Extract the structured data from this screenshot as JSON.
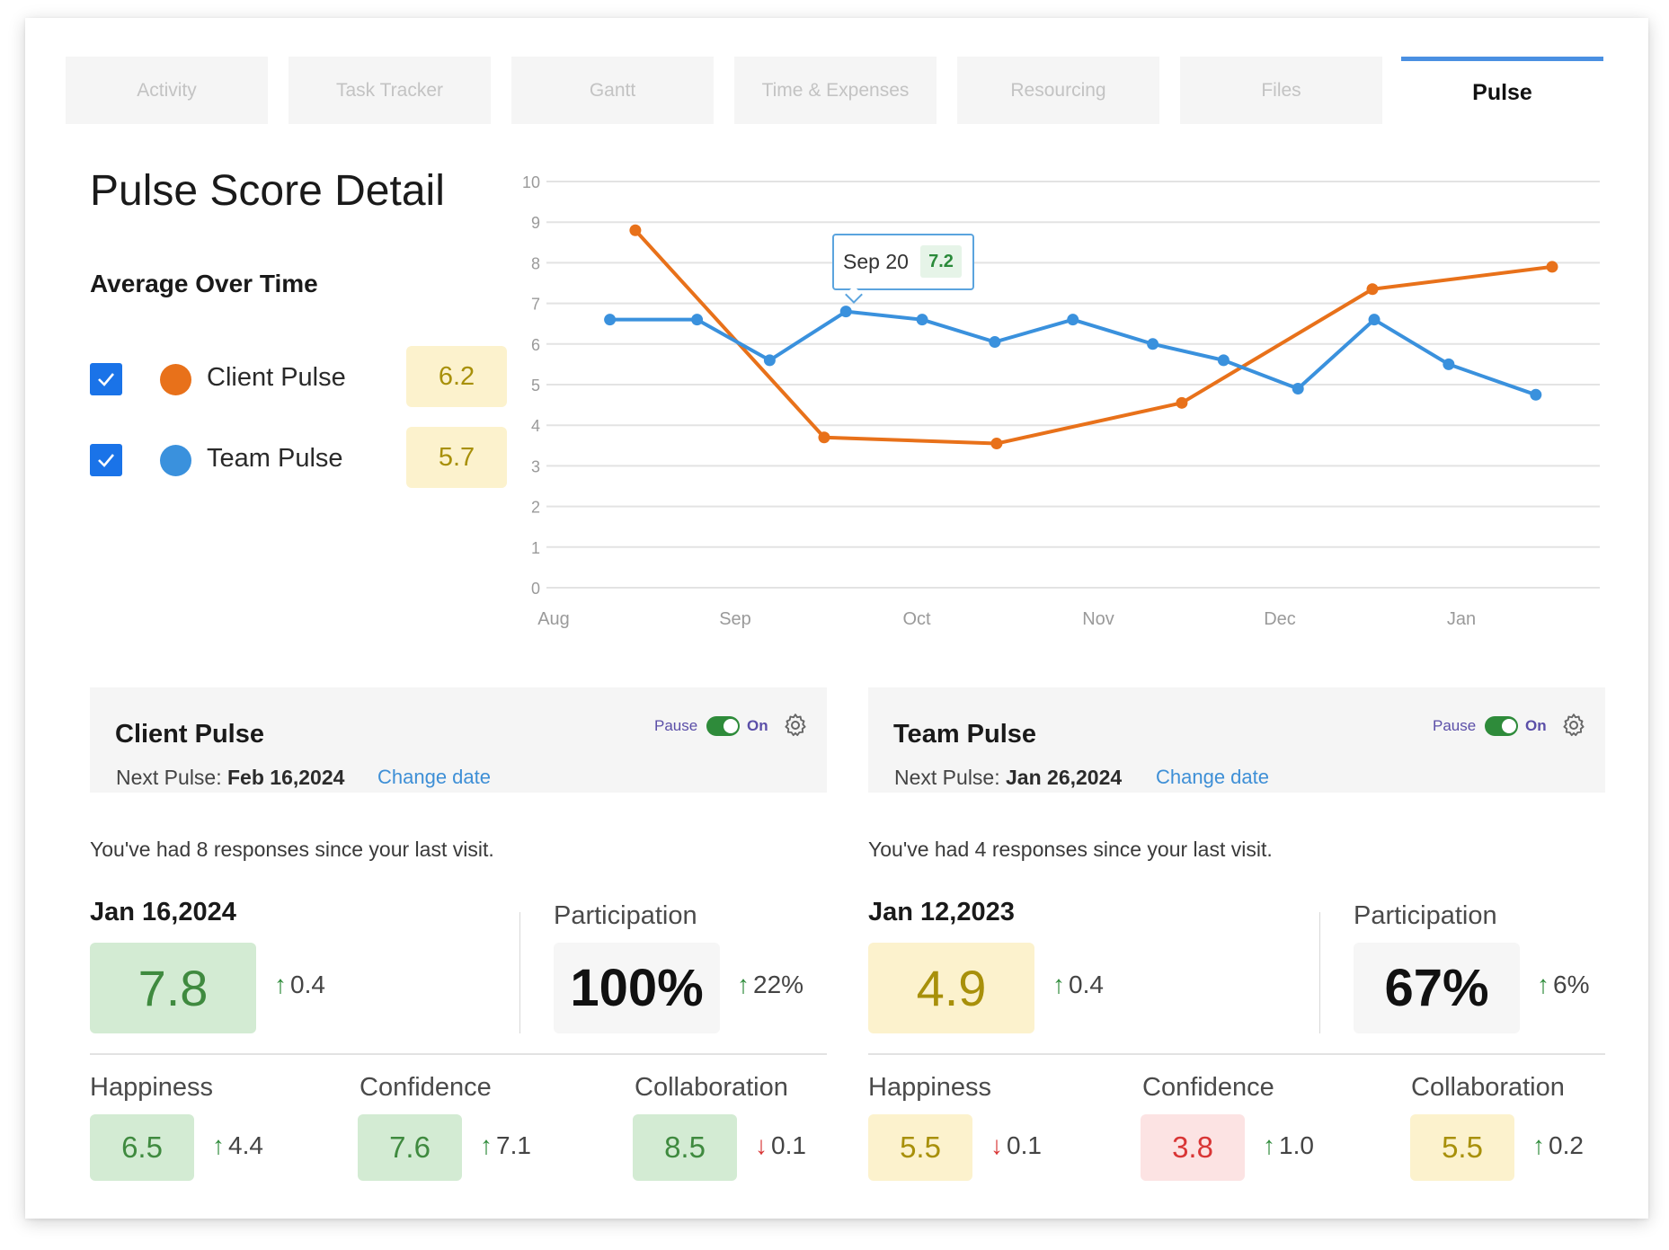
{
  "tabs": [
    {
      "label": "Activity"
    },
    {
      "label": "Task Tracker"
    },
    {
      "label": "Gantt"
    },
    {
      "label": "Time & Expenses"
    },
    {
      "label": "Resourcing"
    },
    {
      "label": "Files"
    },
    {
      "label": "Pulse",
      "active": true
    }
  ],
  "page_title": "Pulse Score Detail",
  "sub_title": "Average Over Time",
  "legend": [
    {
      "label": "Client Pulse",
      "score": "6.2",
      "color": "#e8711a",
      "checked": true
    },
    {
      "label": "Team Pulse",
      "score": "5.7",
      "color": "#3a91dd",
      "checked": true
    }
  ],
  "tooltip": {
    "date": "Sep 20",
    "value": "7.2"
  },
  "chart_data": {
    "type": "line",
    "ylim": [
      0,
      10
    ],
    "yticks": [
      "0",
      "1",
      "2",
      "3",
      "4",
      "5",
      "6",
      "7",
      "8",
      "9",
      "10"
    ],
    "xticks": [
      "Aug",
      "Sep",
      "Oct",
      "Nov",
      "Dec",
      "Jan"
    ],
    "grid": true,
    "series": [
      {
        "name": "Client Pulse",
        "color": "#e8711a",
        "points": [
          {
            "x": 0.45,
            "y": 8.8
          },
          {
            "x": 1.49,
            "y": 3.7
          },
          {
            "x": 2.44,
            "y": 3.55
          },
          {
            "x": 3.46,
            "y": 4.55
          },
          {
            "x": 4.51,
            "y": 7.35
          },
          {
            "x": 5.5,
            "y": 7.9
          }
        ]
      },
      {
        "name": "Team Pulse",
        "color": "#3a91dd",
        "points": [
          {
            "x": 0.31,
            "y": 6.6
          },
          {
            "x": 0.79,
            "y": 6.6
          },
          {
            "x": 1.19,
            "y": 5.6
          },
          {
            "x": 1.61,
            "y": 6.8
          },
          {
            "x": 2.03,
            "y": 6.6
          },
          {
            "x": 2.43,
            "y": 6.05
          },
          {
            "x": 2.86,
            "y": 6.6
          },
          {
            "x": 3.3,
            "y": 6.0
          },
          {
            "x": 3.69,
            "y": 5.6
          },
          {
            "x": 4.1,
            "y": 4.9
          },
          {
            "x": 4.52,
            "y": 6.6
          },
          {
            "x": 4.93,
            "y": 5.5
          },
          {
            "x": 5.41,
            "y": 4.75
          }
        ]
      }
    ]
  },
  "panels": [
    {
      "name": "Client Pulse",
      "next_label": "Next Pulse:",
      "next_date": "Feb 16,2024",
      "change_date": "Change date",
      "pause": "Pause",
      "on": "On",
      "responses": "You've had 8 responses since your last visit.",
      "date": "Jan 16,2024",
      "score": "7.8",
      "score_tone": "green",
      "score_delta": "0.4",
      "participation_label": "Participation",
      "participation": "100%",
      "participation_delta": "22%",
      "metrics": [
        {
          "label": "Happiness",
          "value": "6.5",
          "tone": "green",
          "delta": "4.4",
          "dir": "up"
        },
        {
          "label": "Confidence",
          "value": "7.6",
          "tone": "green",
          "delta": "7.1",
          "dir": "up"
        },
        {
          "label": "Collaboration",
          "value": "8.5",
          "tone": "green",
          "delta": "0.1",
          "dir": "down"
        }
      ]
    },
    {
      "name": "Team Pulse",
      "next_label": "Next Pulse:",
      "next_date": "Jan 26,2024",
      "change_date": "Change date",
      "pause": "Pause",
      "on": "On",
      "responses": "You've had 4 responses since your last visit.",
      "date": "Jan 12,2023",
      "score": "4.9",
      "score_tone": "yellow",
      "score_delta": "0.4",
      "participation_label": "Participation",
      "participation": "67%",
      "participation_delta": "6%",
      "metrics": [
        {
          "label": "Happiness",
          "value": "5.5",
          "tone": "yellow",
          "delta": "0.1",
          "dir": "down"
        },
        {
          "label": "Confidence",
          "value": "3.8",
          "tone": "red",
          "delta": "1.0",
          "dir": "up"
        },
        {
          "label": "Collaboration",
          "value": "5.5",
          "tone": "yellow",
          "delta": "0.2",
          "dir": "up"
        }
      ]
    }
  ]
}
